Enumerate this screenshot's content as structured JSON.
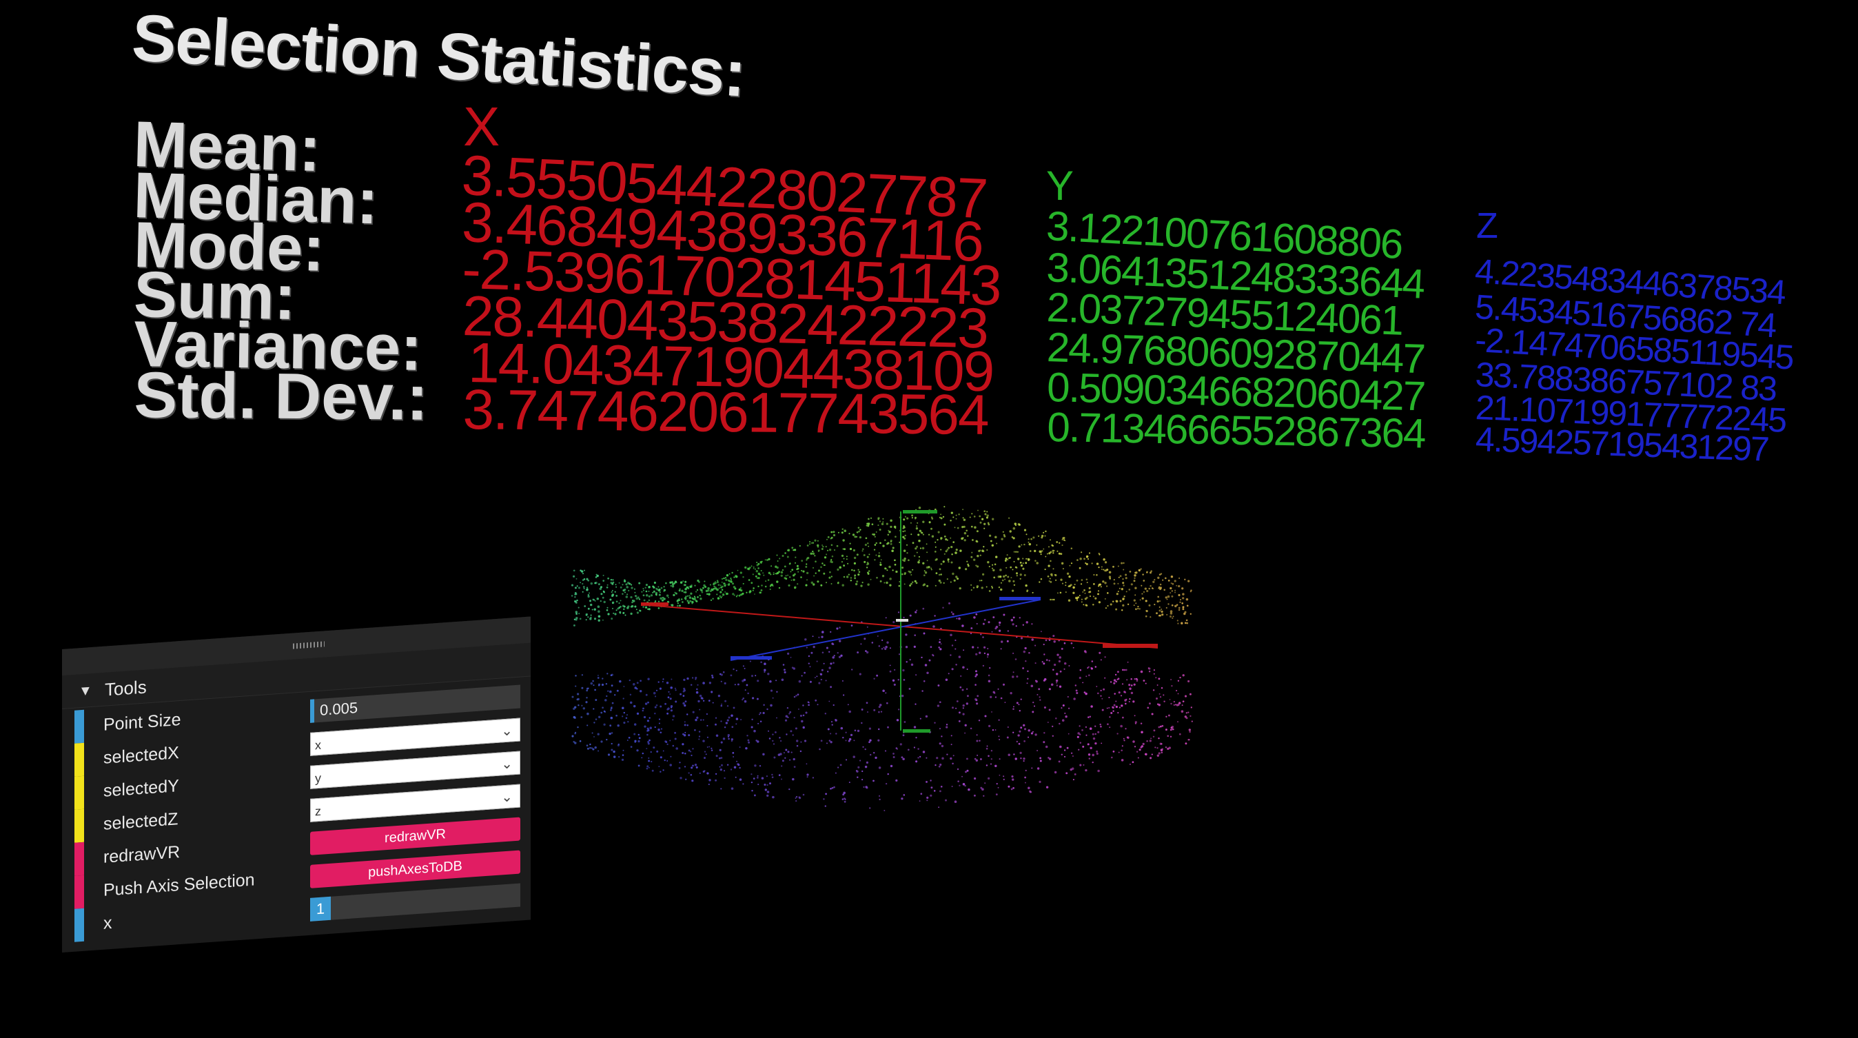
{
  "stats": {
    "title": "Selection Statistics:",
    "labels": {
      "mean": "Mean:",
      "median": "Median:",
      "mode": "Mode:",
      "sum": "Sum:",
      "variance": "Variance:",
      "std_dev": "Std. Dev.:"
    },
    "x": {
      "heading": "X",
      "color": "#c4101a",
      "mean": "3.5550544228027787",
      "median": "3.4684943893367116",
      "mode": "-2.5396170281451143",
      "sum": "28.440435382422223",
      "variance": "14.043471904438109",
      "std_dev": "3.7474620617743564"
    },
    "y": {
      "heading": "Y",
      "color": "#27b52a",
      "mean": "3.122100761608806",
      "median": "3.0641351248333644",
      "mode": "2.037279455124061",
      "sum": "24.976806092870447",
      "variance": "0.5090346682060427",
      "std_dev": "0.7134666552867364"
    },
    "z": {
      "heading": "Z",
      "color": "#1a22c9",
      "mean": "4.2235483446378534",
      "median": "5.4534516756862 74",
      "mode": "-2.1474706585119545",
      "sum": "33.788386757102 83",
      "variance": "21.107199177772245",
      "std_dev": "4.594257195431297"
    }
  },
  "tools": {
    "header": "Tools",
    "point_size": {
      "label": "Point Size",
      "value": "0.005"
    },
    "selected_x": {
      "label": "selectedX",
      "value": "x"
    },
    "selected_y": {
      "label": "selectedY",
      "value": "y"
    },
    "selected_z": {
      "label": "selectedZ",
      "value": "z"
    },
    "redraw": {
      "label": "redrawVR",
      "button": "redrawVR"
    },
    "push_axis": {
      "label": "Push Axis Selection",
      "button": "pushAxesToDB"
    },
    "x": {
      "label": "x",
      "value": "1"
    }
  },
  "colors": {
    "accent_blue": "#3a9bd5",
    "accent_yellow": "#f2e21b",
    "accent_pink": "#e11d63",
    "button_pink": "#e11d63"
  }
}
